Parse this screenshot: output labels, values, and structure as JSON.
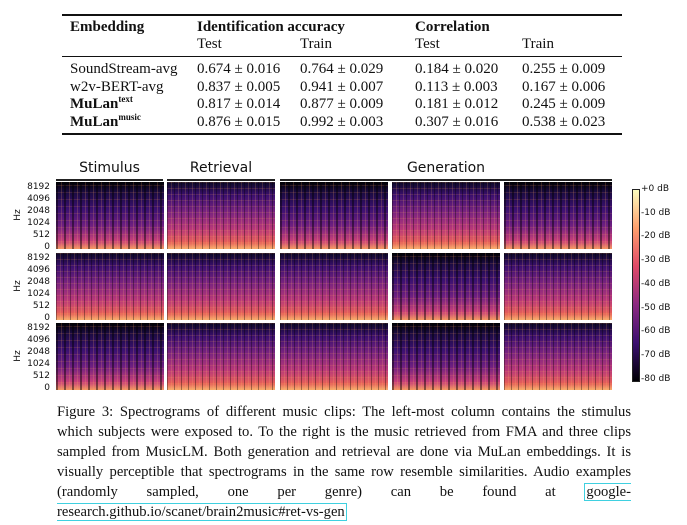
{
  "table": {
    "headers": {
      "embedding": "Embedding",
      "id_accuracy": "Identification accuracy",
      "correlation": "Correlation",
      "test": "Test",
      "train": "Train"
    },
    "rows": [
      {
        "name": "SoundStream-avg",
        "sup": "",
        "id_test": "0.674 ± 0.016",
        "id_train": "0.764 ± 0.029",
        "corr_test": "0.184 ± 0.020",
        "corr_train": "0.255 ± 0.009"
      },
      {
        "name": "w2v-BERT-avg",
        "sup": "",
        "id_test": "0.837 ± 0.005",
        "id_train": "0.941 ± 0.007",
        "corr_test": "0.113 ± 0.003",
        "corr_train": "0.167 ± 0.006"
      },
      {
        "name": "MuLan",
        "sup": "text",
        "id_test": "0.817 ± 0.014",
        "id_train": "0.877 ± 0.009",
        "corr_test": "0.181 ± 0.012",
        "corr_train": "0.245 ± 0.009"
      },
      {
        "name": "MuLan",
        "sup": "music",
        "id_test": "0.876 ± 0.015",
        "id_train": "0.992 ± 0.003",
        "corr_test": "0.307 ± 0.016",
        "corr_train": "0.538 ± 0.023"
      }
    ]
  },
  "figure": {
    "column_headers": [
      "Stimulus",
      "Retrieval",
      "Generation"
    ],
    "y_axis_label": "Hz",
    "y_ticks": [
      "8192",
      "4096",
      "2048",
      "1024",
      "512",
      "0"
    ],
    "colorbar_ticks": [
      "+0 dB",
      "-10 dB",
      "-20 dB",
      "-30 dB",
      "-40 dB",
      "-50 dB",
      "-60 dB",
      "-70 dB",
      "-80 dB"
    ],
    "colormap": [
      "#000004",
      "#3b0f70",
      "#8c2981",
      "#de4968",
      "#fe9f6d",
      "#fcfdbf"
    ]
  },
  "caption": {
    "text": "Figure 3: Spectrograms of different music clips: The left-most column contains the stimulus which subjects were exposed to. To the right is the music retrieved from FMA and three clips sampled from MusicLM. Both generation and retrieval are done via MuLan embeddings. It is visually perceptible that spectrograms in the same row resemble similarities. Audio examples (randomly sampled, one per genre) can be found at",
    "link": "google-research.github.io/scanet/brain2music#ret-vs-gen"
  }
}
